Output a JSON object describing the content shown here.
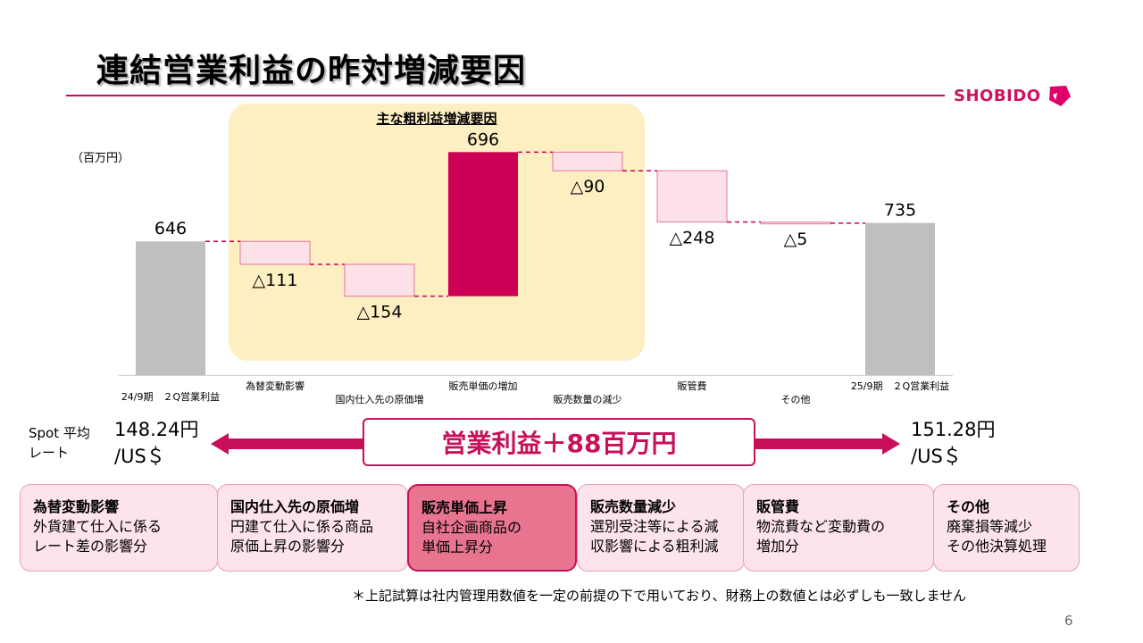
{
  "page": {
    "title": "連結営業利益の昨対増減要因",
    "logo_text": "SHOBIDO",
    "panel_title": "主な粗利益増減要因",
    "page_number": "6",
    "footnote": "＊上記試算は社内管理用数値を一定の前提の下で用いており、財務上の数値とは必ずしも一致しません"
  },
  "chart_data": {
    "type": "waterfall",
    "unit_label": "（百万円）",
    "categories": [
      "24/9期　２Q営業利益",
      "為替変動影響",
      "国内仕入先の原価増",
      "販売単価の増加",
      "販売数量の減少",
      "販管費",
      "その他",
      "25/9期　２Q営業利益"
    ],
    "values": [
      646,
      -111,
      -154,
      696,
      -90,
      -248,
      -5,
      735
    ],
    "kinds": [
      "total",
      "delta",
      "delta",
      "delta",
      "delta",
      "delta",
      "delta",
      "total"
    ],
    "data_labels": [
      "646",
      "△111",
      "△154",
      "696",
      "△90",
      "△248",
      "△5",
      "735"
    ],
    "ylim": [
      0,
      1100
    ],
    "colors": {
      "total": "#bfbfbf",
      "decrease": "#fde1e8",
      "decrease_border": "#e07a9a",
      "increase": "#cc0055",
      "connector": "#cc0055"
    }
  },
  "rates": {
    "label": "Spot 平均\nレート",
    "left_value": "148.24円",
    "left_unit": "/US＄",
    "right_value": "151.28円",
    "right_unit": "/US＄"
  },
  "summary": {
    "text": "営業利益＋88百万円"
  },
  "factors": [
    {
      "heading": "為替変動影響",
      "line1": "外貨建て仕入に係る",
      "line2": "レート差の影響分"
    },
    {
      "heading": "国内仕入先の原価増",
      "line1": "円建て仕入に係る商品",
      "line2": "原価上昇の影響分"
    },
    {
      "heading": "販売単価上昇",
      "line1": "自社企画商品の",
      "line2": "単価上昇分"
    },
    {
      "heading": "販売数量減少",
      "line1": "選別受注等による減",
      "line2": "収影響による粗利減"
    },
    {
      "heading": "販管費",
      "line1": "物流費など変動費の",
      "line2": "増加分"
    },
    {
      "heading": "その他",
      "line1": "廃棄損等減少",
      "line2": "その他決算処理"
    }
  ]
}
